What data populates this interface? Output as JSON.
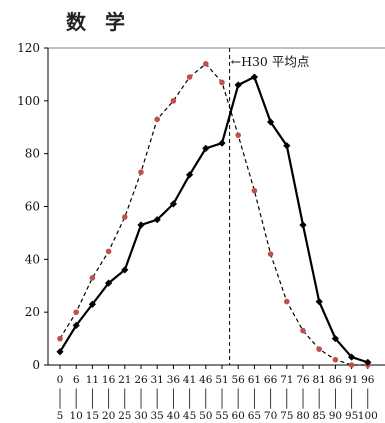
{
  "chart_data": {
    "type": "line",
    "title": "数 学",
    "xlabel": "",
    "ylabel": "",
    "ylim": [
      0,
      120
    ],
    "yticks": [
      0,
      20,
      40,
      60,
      80,
      100,
      120
    ],
    "categories_start": [
      "0",
      "6",
      "11",
      "16",
      "21",
      "26",
      "31",
      "36",
      "41",
      "46",
      "51",
      "56",
      "61",
      "66",
      "71",
      "76",
      "81",
      "86",
      "91",
      "96"
    ],
    "categories_end": [
      "5",
      "10",
      "15",
      "20",
      "25",
      "30",
      "35",
      "40",
      "45",
      "50",
      "55",
      "60",
      "65",
      "70",
      "75",
      "80",
      "85",
      "90",
      "95",
      "100"
    ],
    "separator": "|",
    "series": [
      {
        "values": [
          10,
          20,
          33,
          43,
          56,
          73,
          93,
          100,
          109,
          114,
          107,
          87,
          66,
          42,
          24,
          13,
          6,
          2,
          0,
          0
        ],
        "color": "#c0504d",
        "line_style": "dashed",
        "marker": "circle"
      },
      {
        "values": [
          5,
          15,
          23,
          31,
          36,
          53,
          55,
          61,
          72,
          82,
          84,
          106,
          109,
          92,
          83,
          53,
          24,
          10,
          3,
          1
        ],
        "color": "#000000",
        "line_style": "solid",
        "marker": "diamond"
      }
    ],
    "reference_line": {
      "label": "←H30 平均点",
      "after_category_index": 10
    },
    "grid": false
  }
}
